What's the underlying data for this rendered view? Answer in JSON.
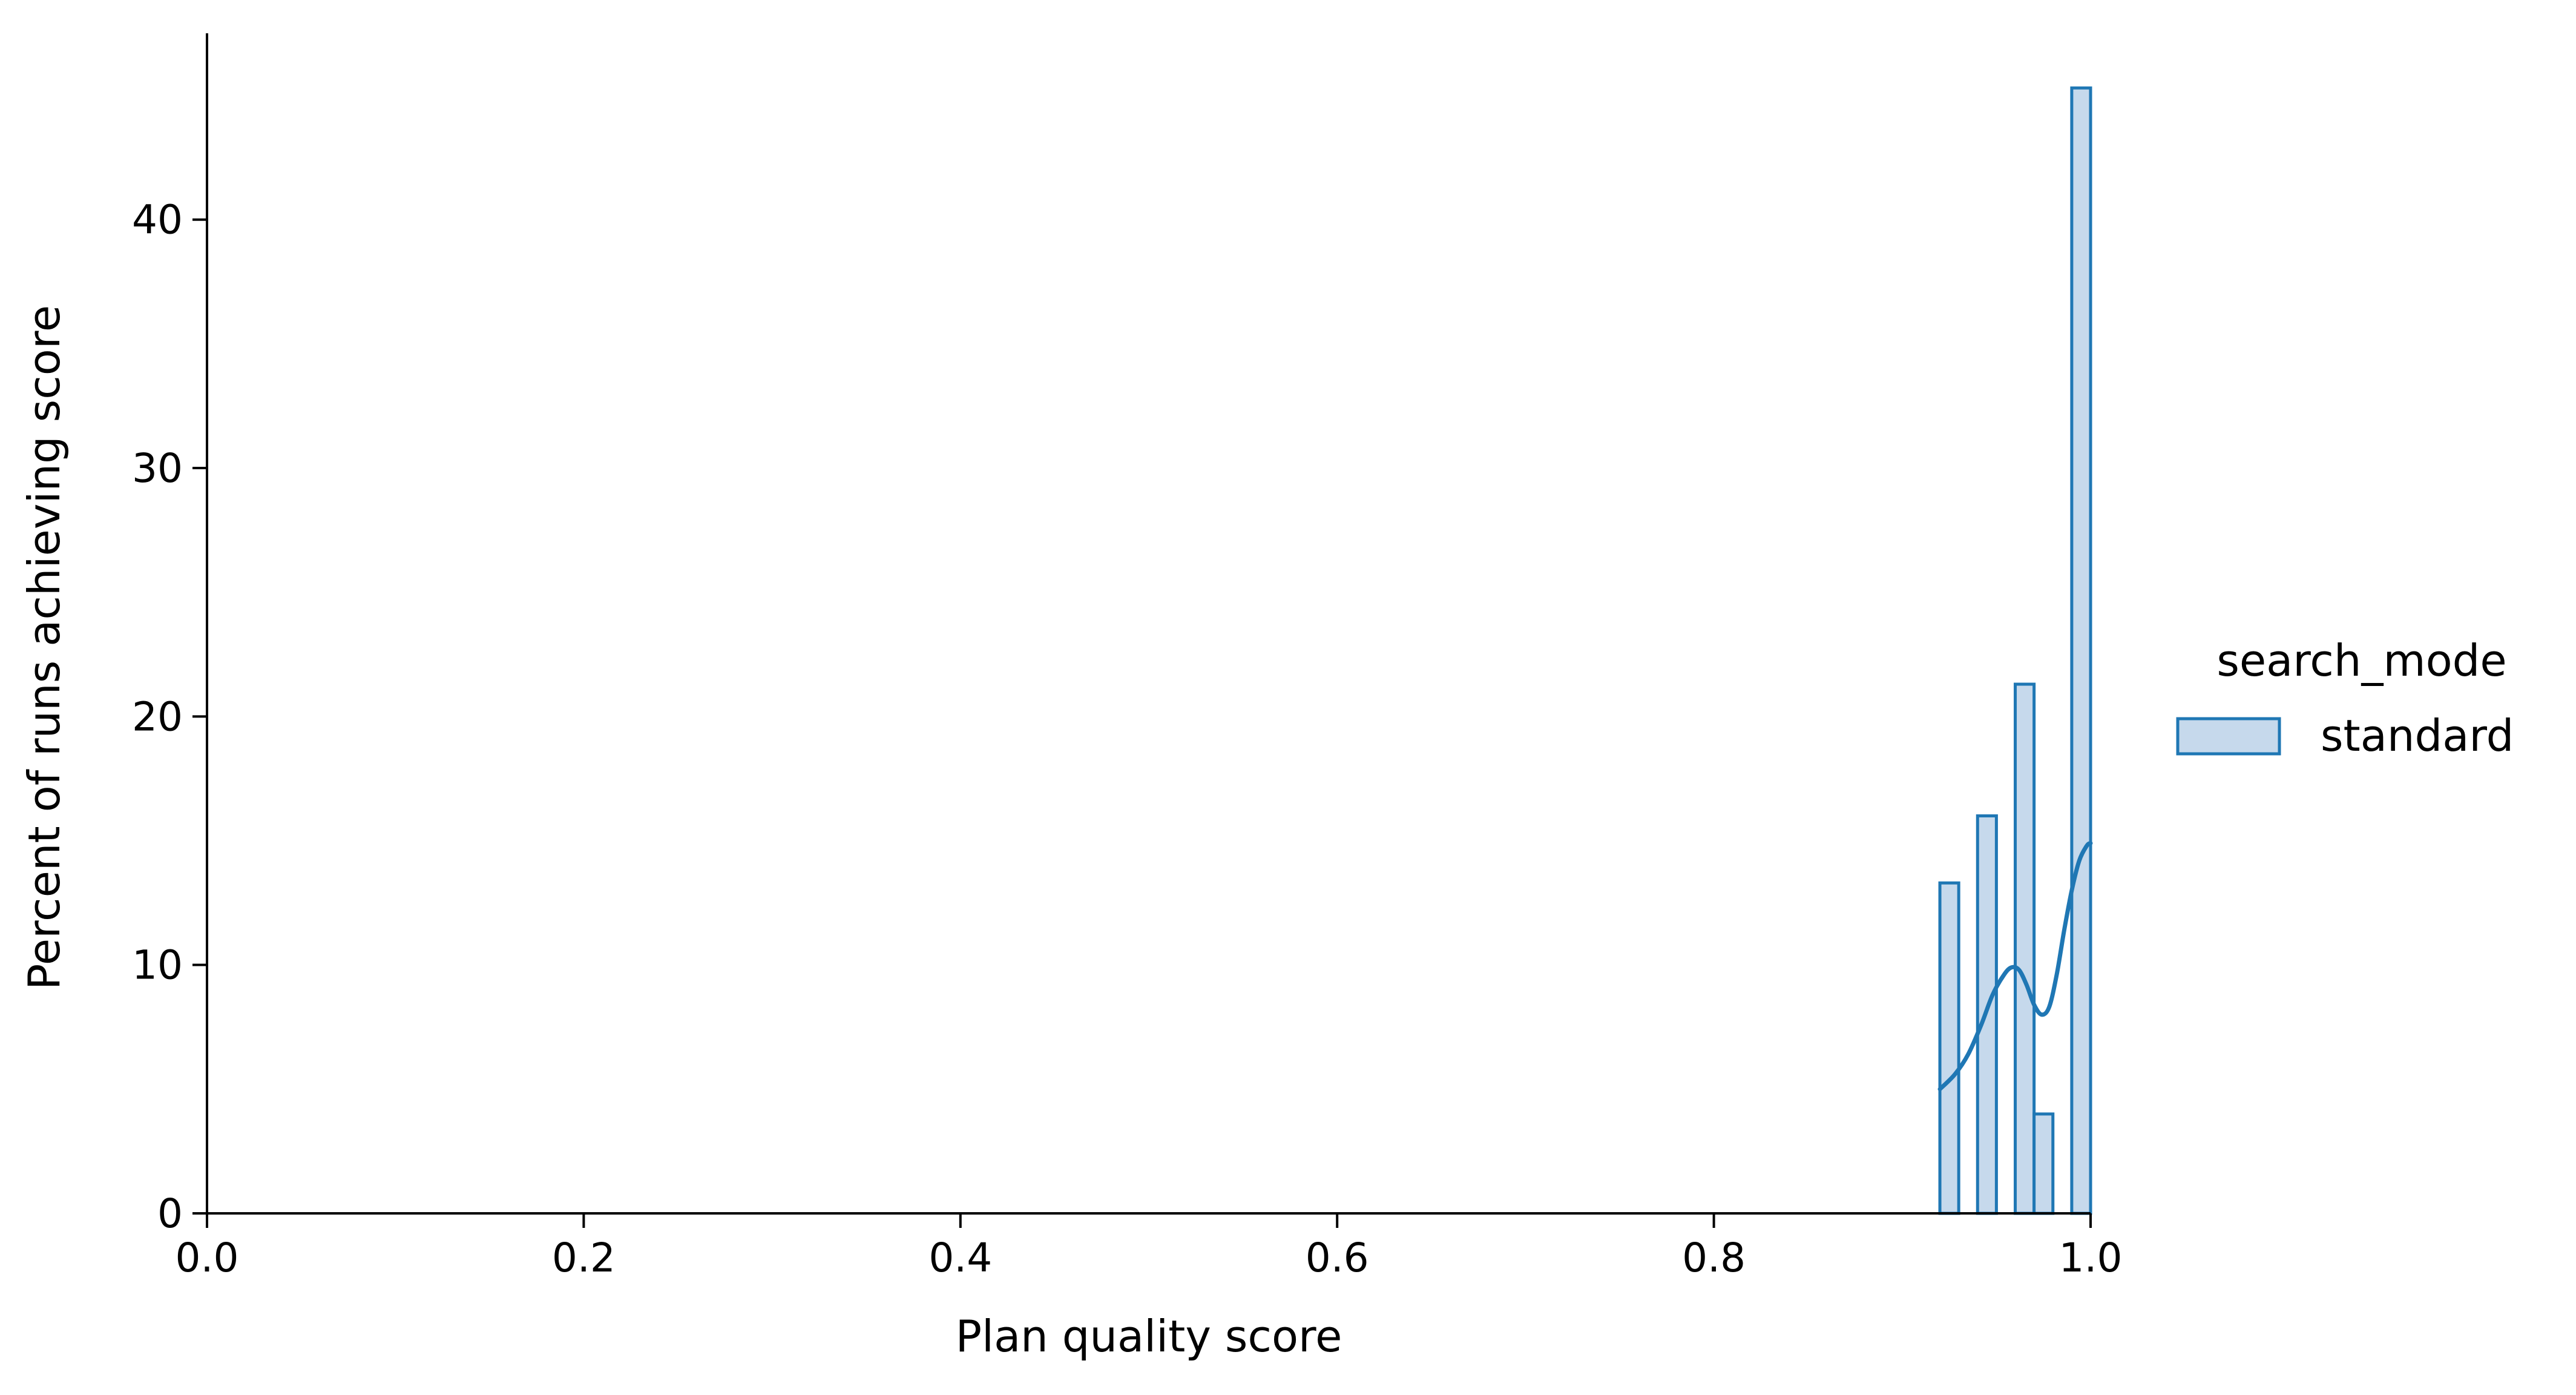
{
  "chart_data": {
    "type": "bar",
    "subtype": "histogram-with-kde",
    "title": "",
    "xlabel": "Plan quality score",
    "ylabel": "Percent of runs achieving score",
    "xlim": [
      0.0,
      1.0
    ],
    "ylim": [
      0,
      47.5
    ],
    "xticks": [
      "0.0",
      "0.2",
      "0.4",
      "0.6",
      "0.8",
      "1.0"
    ],
    "yticks": [
      "0",
      "10",
      "20",
      "30",
      "40"
    ],
    "grid": false,
    "legend": {
      "title": "search_mode",
      "placement": "right",
      "entries": [
        "standard"
      ]
    },
    "series": [
      {
        "name": "standard",
        "color": "#1f77b4",
        "fill_color": "#c6d9ec",
        "bins": [
          {
            "x0": 0.92,
            "x1": 0.93,
            "value": 13.3
          },
          {
            "x0": 0.93,
            "x1": 0.94,
            "value": 0
          },
          {
            "x0": 0.94,
            "x1": 0.95,
            "value": 16.0
          },
          {
            "x0": 0.95,
            "x1": 0.96,
            "value": 0
          },
          {
            "x0": 0.96,
            "x1": 0.97,
            "value": 21.3
          },
          {
            "x0": 0.97,
            "x1": 0.98,
            "value": 4.0
          },
          {
            "x0": 0.98,
            "x1": 0.99,
            "value": 0
          },
          {
            "x0": 0.99,
            "x1": 1.0,
            "value": 45.3
          }
        ],
        "kde": {
          "x": [
            0.92,
            0.928,
            0.935,
            0.942,
            0.948,
            0.954,
            0.958,
            0.962,
            0.966,
            0.97,
            0.974,
            0.978,
            0.982,
            0.986,
            0.99,
            0.994,
            0.998,
            1.0
          ],
          "y": [
            5.0,
            5.6,
            6.4,
            7.6,
            8.8,
            9.6,
            9.9,
            9.8,
            9.2,
            8.4,
            8.0,
            8.3,
            9.6,
            11.4,
            13.0,
            14.2,
            14.8,
            14.9
          ]
        }
      }
    ]
  }
}
